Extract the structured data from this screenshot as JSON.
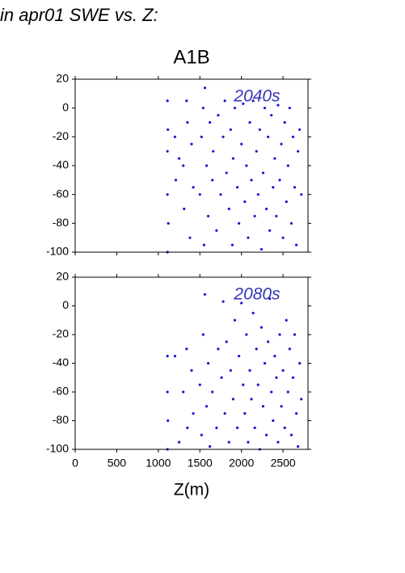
{
  "page_title": "in apr01 SWE vs. Z:",
  "figure_title": "A1B",
  "x_label": "Z(m)",
  "chart_data": [
    {
      "type": "scatter",
      "annotation": "2040s",
      "color": "#1a1acd",
      "xlim": [
        0,
        2800
      ],
      "ylim": [
        -100,
        20
      ],
      "yticks": [
        20,
        0,
        -20,
        -40,
        -60,
        -80,
        -100
      ],
      "x": [
        1110,
        1110,
        1110,
        1110,
        1115,
        1120,
        1200,
        1210,
        1250,
        1300,
        1310,
        1340,
        1350,
        1380,
        1400,
        1420,
        1500,
        1520,
        1540,
        1550,
        1560,
        1580,
        1600,
        1620,
        1650,
        1660,
        1700,
        1720,
        1750,
        1780,
        1800,
        1820,
        1850,
        1870,
        1890,
        1900,
        1920,
        1950,
        1970,
        2000,
        2020,
        2040,
        2060,
        2080,
        2100,
        2120,
        2140,
        2160,
        2180,
        2200,
        2220,
        2240,
        2260,
        2280,
        2300,
        2320,
        2340,
        2360,
        2380,
        2400,
        2420,
        2440,
        2460,
        2480,
        2500,
        2520,
        2540,
        2560,
        2580,
        2600,
        2620,
        2640,
        2660,
        2680,
        2700,
        2720
      ],
      "values": [
        -100,
        -60,
        -30,
        5,
        -15,
        -80,
        -20,
        -50,
        -35,
        -40,
        -70,
        5,
        -10,
        -90,
        -25,
        -55,
        -60,
        -20,
        0,
        -95,
        14,
        -40,
        -75,
        -10,
        -50,
        -30,
        -85,
        -5,
        -60,
        -20,
        5,
        -45,
        -70,
        -15,
        -95,
        -35,
        0,
        -55,
        -80,
        -25,
        3,
        -65,
        -40,
        -90,
        -10,
        -50,
        5,
        -75,
        -30,
        -60,
        -15,
        -98,
        -45,
        0,
        -70,
        -20,
        -85,
        -5,
        -55,
        -35,
        -75,
        2,
        -50,
        -25,
        -90,
        -10,
        -65,
        -40,
        0,
        -80,
        -20,
        -55,
        -95,
        -30,
        -15,
        -60
      ]
    },
    {
      "type": "scatter",
      "annotation": "2080s",
      "color": "#1a1acd",
      "xlim": [
        0,
        2800
      ],
      "ylim": [
        -100,
        20
      ],
      "yticks": [
        20,
        0,
        -20,
        -40,
        -60,
        -80,
        -100
      ],
      "xticks": [
        0,
        500,
        1000,
        1500,
        2000,
        2500
      ],
      "x": [
        1110,
        1110,
        1110,
        1115,
        1200,
        1250,
        1300,
        1340,
        1350,
        1400,
        1420,
        1500,
        1520,
        1540,
        1560,
        1580,
        1600,
        1620,
        1650,
        1700,
        1720,
        1760,
        1780,
        1800,
        1820,
        1850,
        1870,
        1900,
        1920,
        1950,
        1970,
        2000,
        2020,
        2040,
        2060,
        2080,
        2100,
        2120,
        2140,
        2160,
        2180,
        2200,
        2220,
        2240,
        2260,
        2280,
        2300,
        2320,
        2340,
        2360,
        2380,
        2400,
        2420,
        2440,
        2460,
        2480,
        2500,
        2520,
        2540,
        2560,
        2580,
        2600,
        2620,
        2640,
        2660,
        2680,
        2700,
        2720
      ],
      "values": [
        -35,
        -60,
        -100,
        -80,
        -35,
        -95,
        -60,
        -30,
        -85,
        -45,
        -75,
        -55,
        -90,
        -20,
        8,
        -70,
        -40,
        -98,
        -60,
        -85,
        -30,
        -50,
        3,
        -75,
        -25,
        -95,
        -45,
        -65,
        -10,
        -85,
        -35,
        2,
        -55,
        -75,
        -20,
        -95,
        -45,
        -65,
        -5,
        -85,
        -30,
        -55,
        -100,
        -15,
        -70,
        -40,
        -90,
        -25,
        5,
        -60,
        -80,
        -35,
        -50,
        -95,
        -20,
        -70,
        -45,
        -85,
        -10,
        -60,
        -30,
        -90,
        -50,
        -20,
        -75,
        -98,
        -40,
        -65
      ]
    }
  ]
}
